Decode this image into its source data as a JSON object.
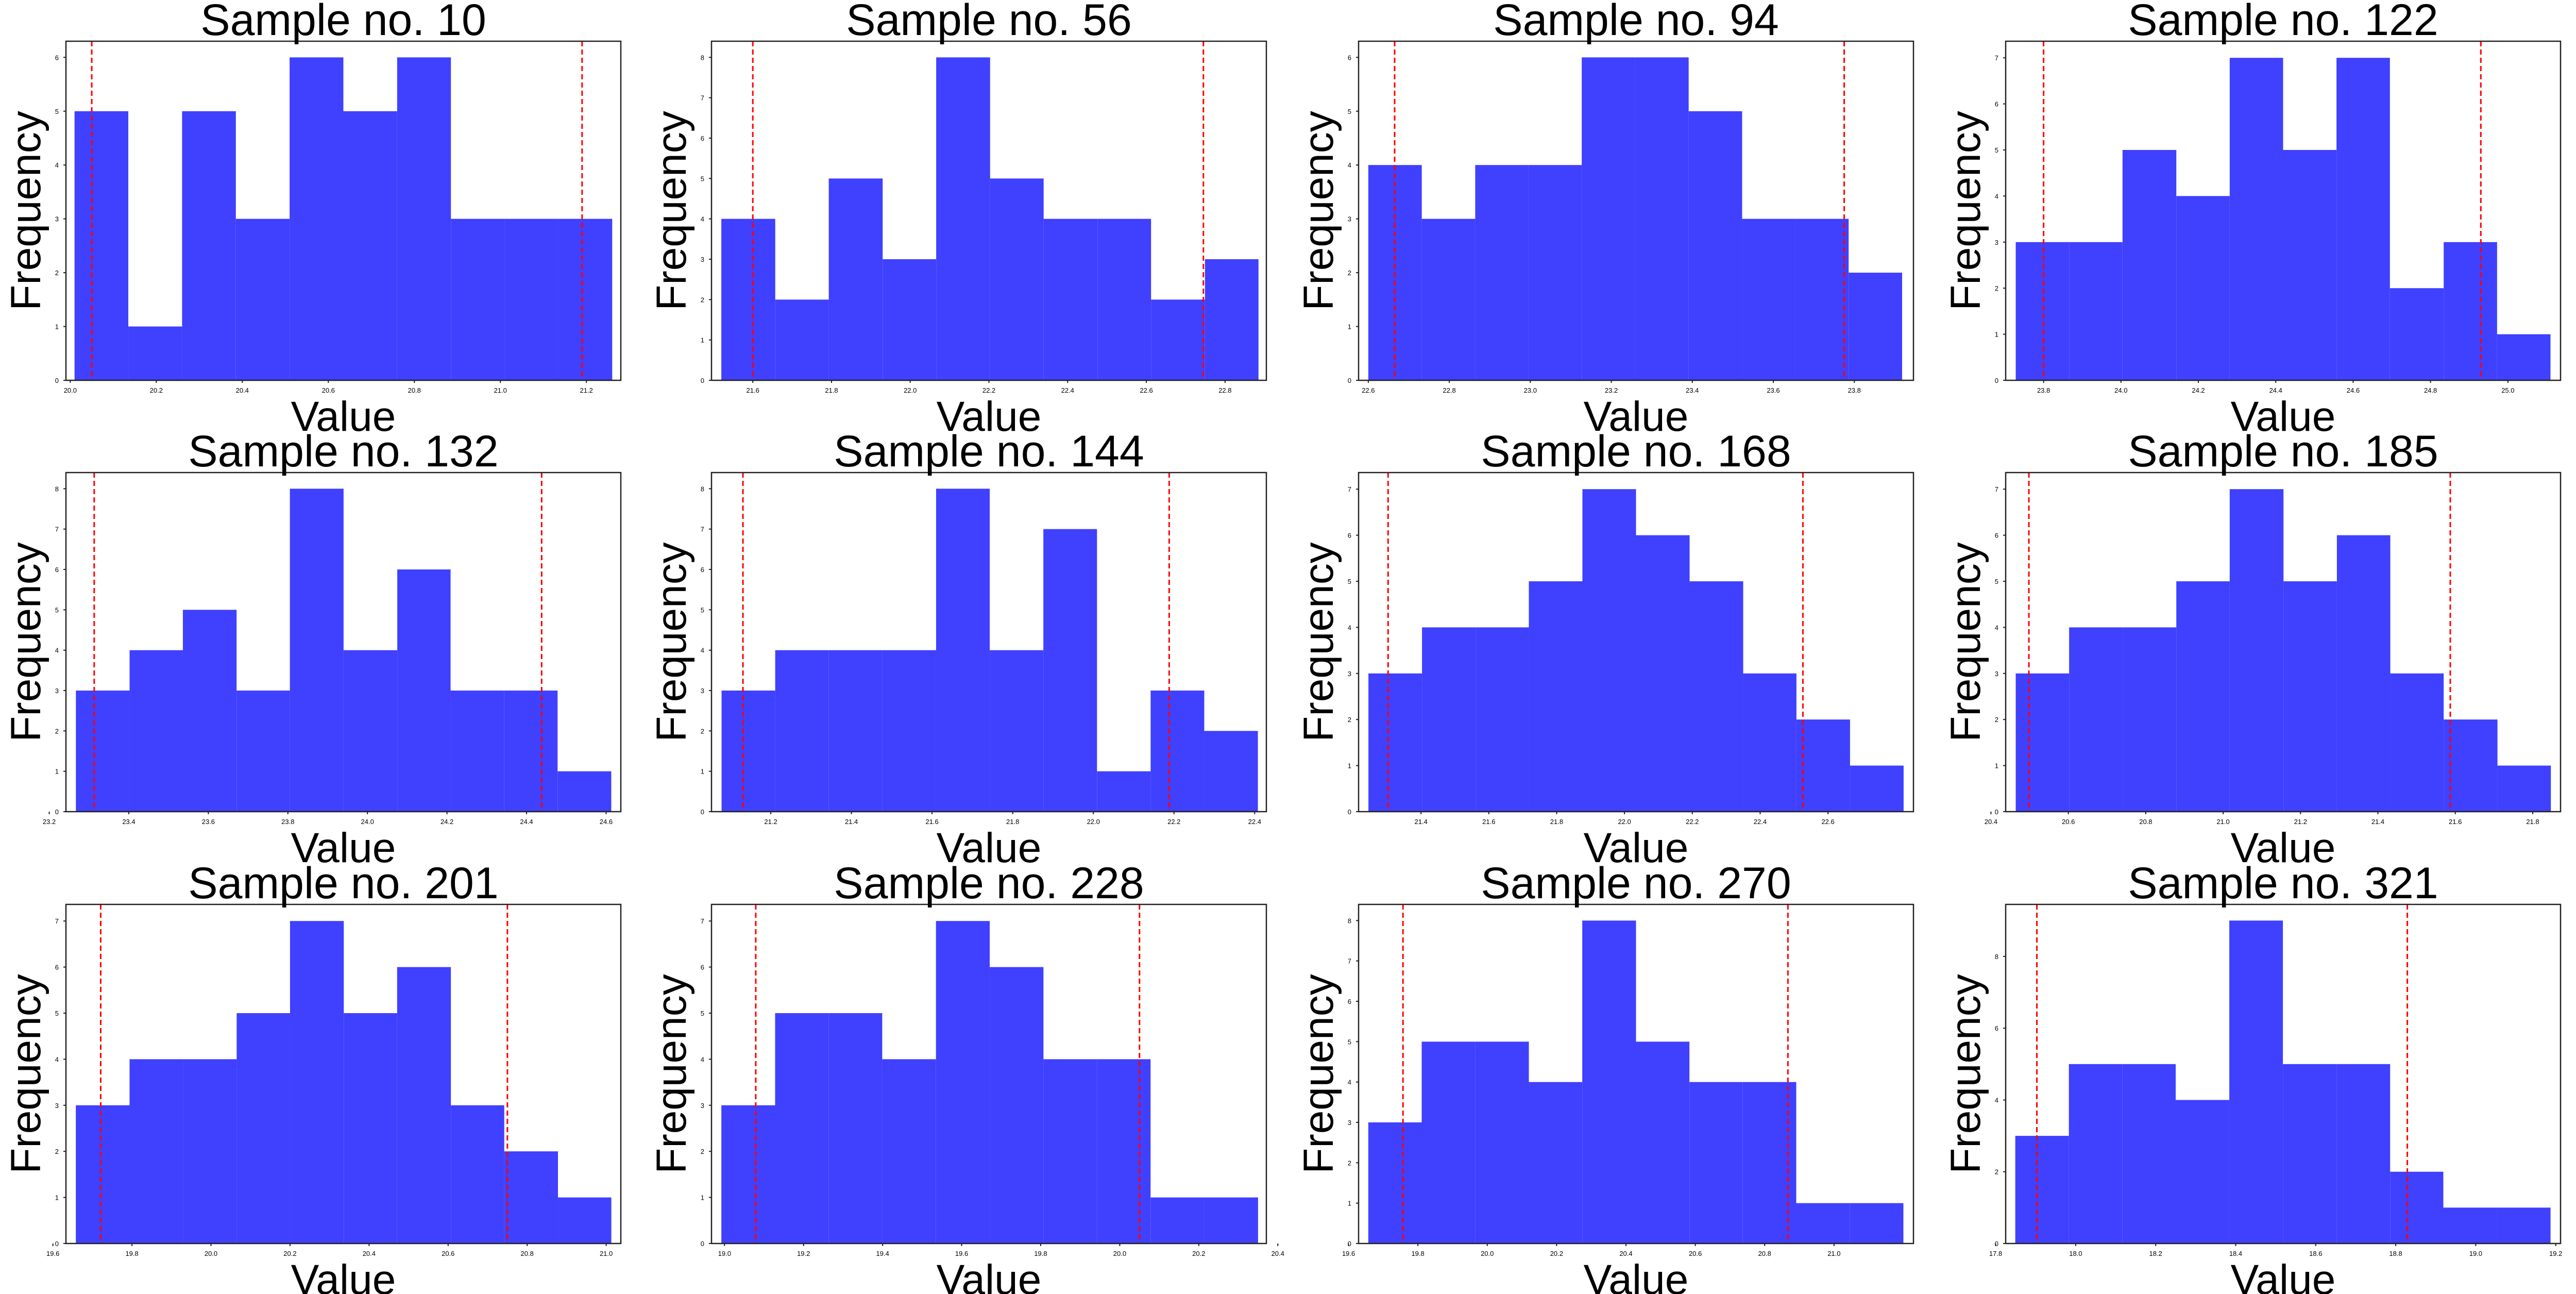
{
  "chart_data": [
    {
      "type": "histogram",
      "title": "Sample no. 10",
      "xlabel": "Value",
      "ylabel": "Frequency",
      "color": "#4040ff",
      "reference_color": "#ff0000",
      "grid": false,
      "bins": [
        20.01,
        20.135,
        20.26,
        20.385,
        20.51,
        20.635,
        20.76,
        20.885,
        21.01,
        21.135,
        21.26
      ],
      "values": [
        5,
        1,
        5,
        3,
        6,
        5,
        6,
        3,
        3,
        3
      ],
      "reference_lines": [
        20.05,
        21.19
      ],
      "xlim": [
        19.99,
        21.28
      ],
      "xticks": [
        {
          "value": 20,
          "label": "20.0"
        },
        20.2,
        20.4,
        20.6,
        20.8,
        {
          "value": 21,
          "label": "21.0"
        },
        21.2
      ],
      "ylim": [
        0,
        6.3
      ],
      "yticks": [
        0,
        1,
        2,
        3,
        4,
        5,
        6
      ]
    },
    {
      "type": "histogram",
      "title": "Sample no. 56",
      "xlabel": "Value",
      "ylabel": "Frequency",
      "color": "#4040ff",
      "reference_color": "#ff0000",
      "grid": false,
      "bins": [
        21.52,
        21.657,
        21.793,
        21.93,
        22.066,
        22.203,
        22.339,
        22.476,
        22.612,
        22.749,
        22.885
      ],
      "values": [
        4,
        2,
        5,
        3,
        8,
        5,
        4,
        4,
        2,
        3
      ],
      "reference_lines": [
        21.6,
        22.745
      ],
      "xlim": [
        21.495,
        22.905
      ],
      "xticks": [
        21.6,
        21.8,
        {
          "value": 22,
          "label": "22.0"
        },
        22.2,
        22.4,
        22.6,
        22.8
      ],
      "ylim": [
        0,
        8.4
      ],
      "yticks": [
        0,
        1,
        2,
        3,
        4,
        5,
        6,
        7,
        8
      ]
    },
    {
      "type": "histogram",
      "title": "Sample no. 94",
      "xlabel": "Value",
      "ylabel": "Frequency",
      "color": "#4040ff",
      "reference_color": "#ff0000",
      "grid": false,
      "bins": [
        22.6,
        22.732,
        22.864,
        22.995,
        23.127,
        23.259,
        23.391,
        23.523,
        23.654,
        23.786,
        23.918
      ],
      "values": [
        4,
        3,
        4,
        4,
        6,
        6,
        5,
        3,
        3,
        2
      ],
      "reference_lines": [
        22.665,
        23.775
      ],
      "xlim": [
        22.576,
        23.946
      ],
      "xticks": [
        22.6,
        22.8,
        {
          "value": 23,
          "label": "23.0"
        },
        23.2,
        23.4,
        23.6,
        23.8
      ],
      "ylim": [
        0,
        6.3
      ],
      "yticks": [
        0,
        1,
        2,
        3,
        4,
        5,
        6
      ]
    },
    {
      "type": "histogram",
      "title": "Sample no. 122",
      "xlabel": "Value",
      "ylabel": "Frequency",
      "color": "#4040ff",
      "reference_color": "#ff0000",
      "grid": false,
      "bins": [
        23.728,
        23.866,
        24.004,
        24.143,
        24.281,
        24.419,
        24.557,
        24.695,
        24.834,
        24.972,
        25.11
      ],
      "values": [
        3,
        3,
        5,
        4,
        7,
        5,
        7,
        2,
        3,
        1
      ],
      "reference_lines": [
        23.8,
        24.93
      ],
      "xlim": [
        23.702,
        25.136
      ],
      "xticks": [
        23.8,
        {
          "value": 24,
          "label": "24.0"
        },
        24.2,
        24.4,
        24.6,
        24.8,
        {
          "value": 25,
          "label": "25.0"
        }
      ],
      "ylim": [
        0,
        7.36
      ],
      "yticks": [
        0,
        1,
        2,
        3,
        4,
        5,
        6,
        7
      ]
    },
    {
      "type": "histogram",
      "title": "Sample no. 132",
      "xlabel": "Value",
      "ylabel": "Frequency",
      "color": "#4040ff",
      "reference_color": "#ff0000",
      "grid": false,
      "bins": [
        23.267,
        23.402,
        23.536,
        23.671,
        23.805,
        23.94,
        24.075,
        24.209,
        24.344,
        24.478,
        24.613
      ],
      "values": [
        3,
        4,
        5,
        3,
        8,
        4,
        6,
        3,
        3,
        1
      ],
      "reference_lines": [
        23.313,
        24.438
      ],
      "xlim": [
        23.242,
        24.637
      ],
      "xticks": [
        23.2,
        23.4,
        23.6,
        23.8,
        {
          "value": 24,
          "label": "24.0"
        },
        24.2,
        24.4,
        24.6
      ],
      "ylim": [
        0,
        8.4
      ],
      "yticks": [
        0,
        1,
        2,
        3,
        4,
        5,
        6,
        7,
        8
      ]
    },
    {
      "type": "histogram",
      "title": "Sample no. 144",
      "xlabel": "Value",
      "ylabel": "Frequency",
      "color": "#4040ff",
      "reference_color": "#ff0000",
      "grid": false,
      "bins": [
        21.078,
        21.211,
        21.344,
        21.477,
        21.61,
        21.743,
        21.876,
        22.009,
        22.142,
        22.275,
        22.408
      ],
      "values": [
        3,
        4,
        4,
        4,
        8,
        4,
        7,
        1,
        3,
        2
      ],
      "reference_lines": [
        21.131,
        22.188
      ],
      "xlim": [
        21.053,
        22.429
      ],
      "xticks": [
        21.2,
        21.4,
        21.6,
        21.8,
        {
          "value": 22,
          "label": "22.0"
        },
        22.2,
        22.4
      ],
      "ylim": [
        0,
        8.4
      ],
      "yticks": [
        0,
        1,
        2,
        3,
        4,
        5,
        6,
        7,
        8
      ]
    },
    {
      "type": "histogram",
      "title": "Sample no. 168",
      "xlabel": "Value",
      "ylabel": "Frequency",
      "color": "#4040ff",
      "reference_color": "#ff0000",
      "grid": false,
      "bins": [
        21.245,
        21.403,
        21.561,
        21.718,
        21.876,
        22.034,
        22.192,
        22.35,
        22.507,
        22.665,
        22.823
      ],
      "values": [
        3,
        4,
        4,
        5,
        7,
        6,
        5,
        3,
        2,
        1
      ],
      "reference_lines": [
        21.303,
        22.526
      ],
      "xlim": [
        21.216,
        22.852
      ],
      "xticks": [
        21.4,
        21.6,
        21.8,
        {
          "value": 22,
          "label": "22.0"
        },
        22.2,
        22.4,
        22.6
      ],
      "ylim": [
        0,
        7.36
      ],
      "yticks": [
        0,
        1,
        2,
        3,
        4,
        5,
        6,
        7
      ]
    },
    {
      "type": "histogram",
      "title": "Sample no. 185",
      "xlabel": "Value",
      "ylabel": "Frequency",
      "color": "#4040ff",
      "reference_color": "#ff0000",
      "grid": false,
      "bins": [
        20.464,
        20.602,
        20.741,
        20.879,
        21.017,
        21.156,
        21.294,
        21.432,
        21.57,
        21.709,
        21.847
      ],
      "values": [
        3,
        4,
        4,
        5,
        7,
        5,
        6,
        3,
        2,
        1
      ],
      "reference_lines": [
        20.498,
        21.587
      ],
      "xlim": [
        20.438,
        21.872
      ],
      "xticks": [
        20.4,
        20.6,
        20.8,
        {
          "value": 21,
          "label": "21.0"
        },
        21.2,
        21.4,
        21.6,
        21.8
      ],
      "ylim": [
        0,
        7.36
      ],
      "yticks": [
        0,
        1,
        2,
        3,
        4,
        5,
        6,
        7
      ]
    },
    {
      "type": "histogram",
      "title": "Sample no. 201",
      "xlabel": "Value",
      "ylabel": "Frequency",
      "color": "#4040ff",
      "reference_color": "#ff0000",
      "grid": false,
      "bins": [
        19.658,
        19.794,
        19.929,
        20.065,
        20.2,
        20.336,
        20.471,
        20.607,
        20.742,
        20.878,
        21.013
      ],
      "values": [
        3,
        4,
        4,
        5,
        7,
        5,
        6,
        3,
        2,
        1
      ],
      "reference_lines": [
        19.721,
        20.75
      ],
      "xlim": [
        19.633,
        21.037
      ],
      "xticks": [
        19.6,
        19.8,
        {
          "value": 20,
          "label": "20.0"
        },
        20.2,
        20.4,
        20.6,
        20.8,
        {
          "value": 21,
          "label": "21.0"
        }
      ],
      "ylim": [
        0,
        7.36
      ],
      "yticks": [
        0,
        1,
        2,
        3,
        4,
        5,
        6,
        7
      ]
    },
    {
      "type": "histogram",
      "title": "Sample no. 228",
      "xlabel": "Value",
      "ylabel": "Frequency",
      "color": "#4040ff",
      "reference_color": "#ff0000",
      "grid": false,
      "bins": [
        18.992,
        19.128,
        19.264,
        19.399,
        19.535,
        19.671,
        19.807,
        19.943,
        20.078,
        20.214,
        20.35
      ],
      "values": [
        3,
        5,
        5,
        4,
        7,
        6,
        4,
        4,
        1,
        1
      ],
      "reference_lines": [
        19.079,
        20.05
      ],
      "xlim": [
        18.967,
        20.371
      ],
      "xticks": [
        {
          "value": 19,
          "label": "19.0"
        },
        19.2,
        19.4,
        19.6,
        19.8,
        {
          "value": 20,
          "label": "20.0"
        },
        20.2,
        20.4
      ],
      "ylim": [
        0,
        7.36
      ],
      "yticks": [
        0,
        1,
        2,
        3,
        4,
        5,
        6,
        7
      ]
    },
    {
      "type": "histogram",
      "title": "Sample no. 270",
      "xlabel": "Value",
      "ylabel": "Frequency",
      "color": "#4040ff",
      "reference_color": "#ff0000",
      "grid": false,
      "bins": [
        19.657,
        19.811,
        19.966,
        20.12,
        20.274,
        20.429,
        20.583,
        20.737,
        20.891,
        21.046,
        21.2
      ],
      "values": [
        3,
        5,
        5,
        4,
        8,
        5,
        4,
        4,
        1,
        1
      ],
      "reference_lines": [
        19.757,
        20.867
      ],
      "xlim": [
        19.629,
        21.229
      ],
      "xticks": [
        19.6,
        19.8,
        {
          "value": 20,
          "label": "20.0"
        },
        20.2,
        20.4,
        20.6,
        20.8,
        {
          "value": 21,
          "label": "21.0"
        }
      ],
      "ylim": [
        0,
        8.4
      ],
      "yticks": [
        0,
        1,
        2,
        3,
        4,
        5,
        6,
        7,
        8
      ]
    },
    {
      "type": "histogram",
      "title": "Sample no. 321",
      "xlabel": "Value",
      "ylabel": "Frequency",
      "color": "#4040ff",
      "reference_color": "#ff0000",
      "grid": false,
      "bins": [
        17.849,
        17.983,
        18.117,
        18.25,
        18.384,
        18.518,
        18.652,
        18.786,
        18.919,
        19.053,
        19.187
      ],
      "values": [
        3,
        5,
        5,
        4,
        9,
        5,
        5,
        2,
        1,
        1
      ],
      "reference_lines": [
        17.903,
        18.829
      ],
      "xlim": [
        17.825,
        19.212
      ],
      "xticks": [
        17.8,
        {
          "value": 18,
          "label": "18.0"
        },
        18.2,
        18.4,
        18.6,
        18.8,
        {
          "value": 19,
          "label": "19.0"
        },
        19.2
      ],
      "ylim": [
        0,
        9.45
      ],
      "yticks": [
        0,
        2,
        4,
        6,
        8
      ]
    }
  ]
}
